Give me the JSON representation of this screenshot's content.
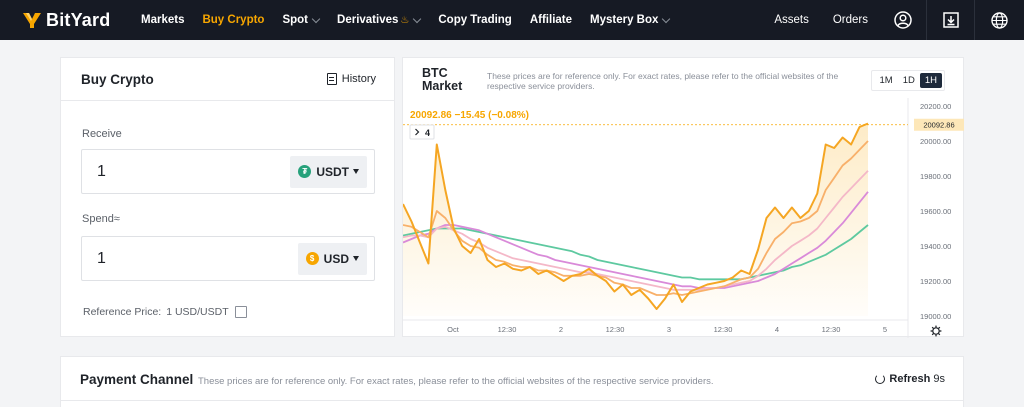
{
  "nav": {
    "logo": "BitYard",
    "links": [
      {
        "label": "Markets",
        "active": false,
        "dropdown": false,
        "fire": false
      },
      {
        "label": "Buy Crypto",
        "active": true,
        "dropdown": false,
        "fire": false
      },
      {
        "label": "Spot",
        "active": false,
        "dropdown": true,
        "fire": false
      },
      {
        "label": "Derivatives",
        "active": false,
        "dropdown": true,
        "fire": true
      },
      {
        "label": "Copy Trading",
        "active": false,
        "dropdown": false,
        "fire": false
      },
      {
        "label": "Affiliate",
        "active": false,
        "dropdown": false,
        "fire": false
      },
      {
        "label": "Mystery Box",
        "active": false,
        "dropdown": true,
        "fire": false
      }
    ],
    "assets": "Assets",
    "orders": "Orders",
    "icons": [
      "user-icon",
      "download-icon",
      "globe-icon"
    ],
    "accent": "#f7a600"
  },
  "buy": {
    "title": "Buy Crypto",
    "history": "History",
    "receive_label": "Receive",
    "receive_value": "1",
    "receive_currency": "USDT",
    "receive_coin_color": "#26a17b",
    "spend_label": "Spend≈",
    "spend_value": "1",
    "spend_currency": "USD",
    "spend_coin_color": "#f7a600",
    "ref_label": "Reference Price:",
    "ref_value": "1 USD/USDT"
  },
  "market": {
    "title": "BTC Market",
    "note": "These prices are for reference only. For exact rates, please refer to the official websites of the respective service providers.",
    "timeframes": [
      "1M",
      "1D",
      "1H"
    ],
    "active_timeframe": "1H",
    "price_info": "20092.86  −15.45 (−0.08%)",
    "price_tag": "20092.86",
    "indicator_badge": "4"
  },
  "chart_data": {
    "type": "line",
    "ylim": [
      19000,
      20200
    ],
    "yticks": [
      "20200.00",
      "20000.00",
      "19800.00",
      "19600.00",
      "19400.00",
      "19200.00",
      "19000.00"
    ],
    "xticks": [
      "Oct",
      "12:30",
      "2",
      "12:30",
      "3",
      "12:30",
      "4",
      "12:30",
      "5"
    ],
    "current_price": 20092.86,
    "series": [
      {
        "color": "#f5a623",
        "values": [
          19640,
          19540,
          19420,
          19300,
          19980,
          19720,
          19500,
          19400,
          19360,
          19440,
          19320,
          19280,
          19300,
          19270,
          19260,
          19280,
          19240,
          19260,
          19230,
          19200,
          19230,
          19240,
          19270,
          19230,
          19200,
          19140,
          19180,
          19120,
          19150,
          19100,
          19040,
          19100,
          19180,
          19080,
          19140,
          19160,
          19180,
          19190,
          19200,
          19220,
          19260,
          19240,
          19380,
          19560,
          19620,
          19560,
          19620,
          19560,
          19600,
          19700,
          19980,
          19960,
          20020,
          19980,
          20080,
          20100
        ]
      },
      {
        "color": "#f8b06a",
        "values": [
          19520,
          19510,
          19480,
          19450,
          19600,
          19560,
          19490,
          19430,
          19400,
          19390,
          19350,
          19320,
          19310,
          19290,
          19280,
          19280,
          19260,
          19260,
          19250,
          19230,
          19230,
          19230,
          19240,
          19230,
          19220,
          19190,
          19180,
          19160,
          19160,
          19140,
          19120,
          19120,
          19130,
          19120,
          19130,
          19140,
          19150,
          19160,
          19170,
          19190,
          19210,
          19220,
          19270,
          19360,
          19440,
          19480,
          19530,
          19540,
          19560,
          19600,
          19720,
          19790,
          19860,
          19900,
          19950,
          20000
        ]
      },
      {
        "color": "#f4b8c8",
        "values": [
          19450,
          19460,
          19460,
          19450,
          19500,
          19510,
          19490,
          19470,
          19440,
          19420,
          19390,
          19370,
          19350,
          19330,
          19320,
          19310,
          19300,
          19290,
          19280,
          19270,
          19260,
          19250,
          19250,
          19240,
          19230,
          19220,
          19210,
          19200,
          19190,
          19180,
          19170,
          19160,
          19150,
          19150,
          19150,
          19150,
          19160,
          19160,
          19170,
          19180,
          19190,
          19200,
          19230,
          19270,
          19320,
          19360,
          19400,
          19430,
          19460,
          19500,
          19560,
          19620,
          19680,
          19730,
          19780,
          19830
        ]
      },
      {
        "color": "#d98ad9",
        "values": [
          19420,
          19440,
          19460,
          19470,
          19500,
          19520,
          19520,
          19510,
          19500,
          19490,
          19470,
          19450,
          19430,
          19410,
          19390,
          19370,
          19350,
          19340,
          19320,
          19310,
          19300,
          19290,
          19280,
          19270,
          19260,
          19250,
          19240,
          19230,
          19220,
          19210,
          19200,
          19190,
          19180,
          19170,
          19170,
          19160,
          19160,
          19160,
          19160,
          19170,
          19180,
          19190,
          19200,
          19220,
          19240,
          19270,
          19300,
          19330,
          19360,
          19390,
          19430,
          19480,
          19530,
          19590,
          19650,
          19710
        ]
      },
      {
        "color": "#5ec9a0",
        "values": [
          19460,
          19470,
          19480,
          19490,
          19500,
          19500,
          19500,
          19500,
          19490,
          19480,
          19470,
          19460,
          19450,
          19440,
          19430,
          19420,
          19410,
          19400,
          19390,
          19380,
          19370,
          19350,
          19340,
          19320,
          19310,
          19300,
          19290,
          19280,
          19270,
          19260,
          19250,
          19240,
          19230,
          19220,
          19220,
          19210,
          19210,
          19210,
          19210,
          19210,
          19210,
          19220,
          19230,
          19240,
          19250,
          19260,
          19280,
          19290,
          19310,
          19330,
          19350,
          19380,
          19410,
          19440,
          19480,
          19520
        ]
      }
    ]
  },
  "payment": {
    "title": "Payment Channel",
    "note": "These prices are for reference only. For exact rates, please refer to the official websites of the respective service providers.",
    "refresh": "Refresh",
    "refresh_count": "9s"
  }
}
